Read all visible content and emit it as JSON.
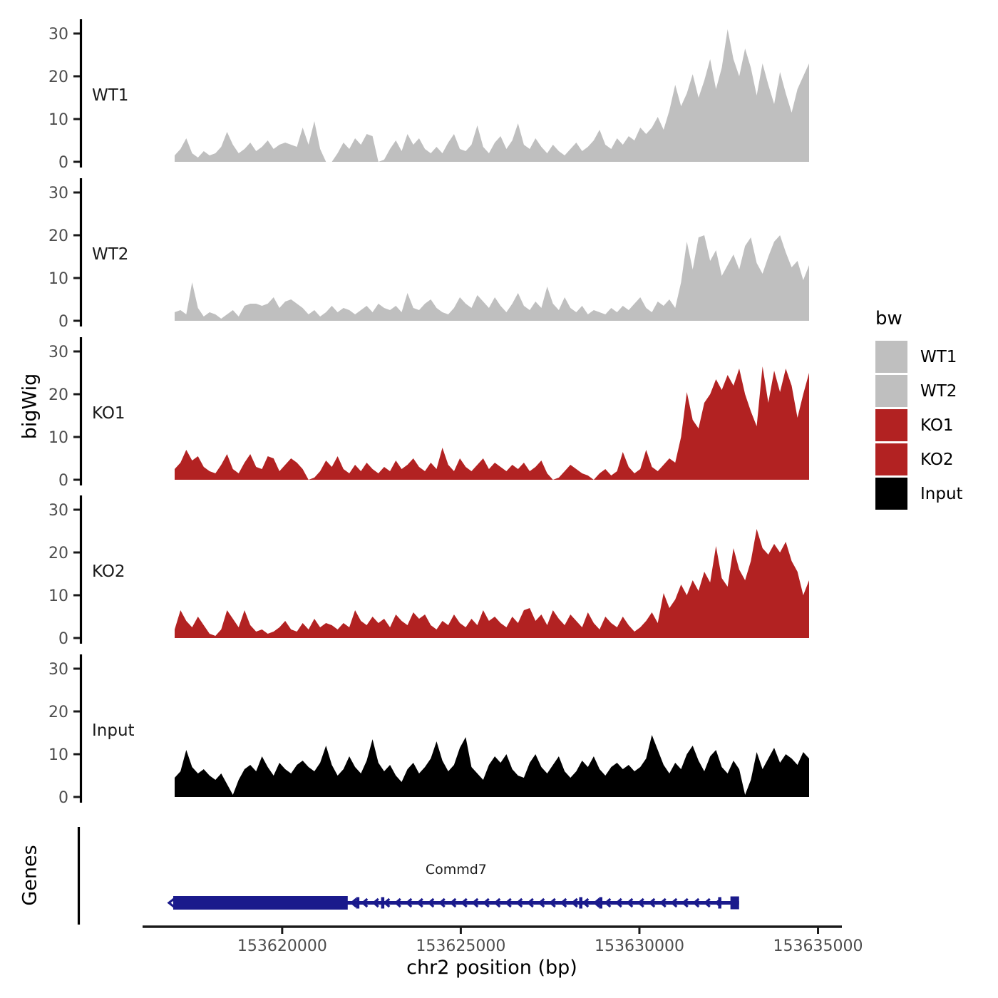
{
  "figure": {
    "ylabel_tracks": "bigWig",
    "ylabel_genes": "Genes",
    "xaxis_title": "chr2 position (bp)"
  },
  "legend": {
    "title": "bw",
    "items": [
      {
        "label": "WT1",
        "color": "#BFBFBF"
      },
      {
        "label": "WT2",
        "color": "#BFBFBF"
      },
      {
        "label": "KO1",
        "color": "#B22222"
      },
      {
        "label": "KO2",
        "color": "#B22222"
      },
      {
        "label": "Input",
        "color": "#000000"
      }
    ]
  },
  "colors": {
    "wt_fill": "#BFBFBF",
    "ko_fill": "#B22222",
    "input_fill": "#000000",
    "gene_fill": "#1A1A8C",
    "axis_text": "#4D4D4D",
    "axis_line": "#000000",
    "label_text": "#1A1A1A"
  },
  "chart_data": {
    "type": "area",
    "title": "",
    "xlabel": "chr2 position (bp)",
    "ylabel": "bigWig",
    "grid": false,
    "legend_position": "right",
    "x_domain": [
      153616990,
      153634750
    ],
    "x_ticks": [
      153620000,
      153625000,
      153630000,
      153635000
    ],
    "y_ticks": [
      0,
      10,
      20,
      30
    ],
    "ylim": [
      0,
      34
    ],
    "n_points": 110,
    "tracks": [
      {
        "name": "WT1",
        "color": "#BFBFBF",
        "values": [
          1.5,
          3,
          5.5,
          2,
          1,
          2.5,
          1.5,
          2,
          3.5,
          7,
          4,
          2,
          3,
          4.5,
          2.5,
          3.5,
          5,
          3,
          4,
          4.5,
          4,
          3.5,
          8,
          4,
          9.5,
          3,
          0,
          0,
          2,
          4.5,
          3,
          5.5,
          4,
          6.5,
          6,
          0,
          0.5,
          3,
          5,
          2.5,
          6.5,
          4,
          5.5,
          3,
          2,
          3.5,
          2,
          4.5,
          6.5,
          3,
          2.5,
          4,
          8.5,
          3.5,
          2,
          4.5,
          6,
          3,
          5,
          9,
          4,
          3,
          5.5,
          3.5,
          2,
          4,
          2.5,
          1.5,
          3,
          4.5,
          2.5,
          3.5,
          5,
          7.5,
          4,
          3,
          5.5,
          4,
          6,
          5,
          8,
          6.5,
          8,
          10.5,
          7.5,
          12,
          18,
          13,
          16,
          20.5,
          15,
          19,
          24,
          17,
          22,
          31,
          24,
          20,
          26.5,
          22,
          15.5,
          23,
          18,
          13.5,
          21,
          16,
          11.5,
          17,
          20,
          23
        ]
      },
      {
        "name": "WT2",
        "color": "#BFBFBF",
        "values": [
          2,
          2.5,
          1.5,
          9,
          3,
          1,
          2,
          1.5,
          0.5,
          1.5,
          2.5,
          1,
          3.5,
          4,
          4,
          3.5,
          4,
          5.5,
          3,
          4.5,
          5,
          4,
          3,
          1.5,
          2.5,
          1,
          2,
          3.5,
          2,
          3,
          2.5,
          1.5,
          2.5,
          3.5,
          2,
          4,
          3,
          2.5,
          3.5,
          2,
          6.5,
          3,
          2.5,
          4,
          5,
          3,
          2,
          1.5,
          3,
          5.5,
          4,
          3,
          6,
          4.5,
          3,
          5.5,
          3.5,
          2,
          4,
          6.5,
          3.5,
          2.5,
          4.5,
          3,
          8,
          4,
          2.5,
          5.5,
          3,
          2,
          3.5,
          1.5,
          2.5,
          2,
          1.5,
          3,
          2,
          3.5,
          2.5,
          4,
          5.5,
          3,
          2,
          4.5,
          3.5,
          5,
          3,
          9,
          18.5,
          12,
          19.5,
          20,
          14,
          16.5,
          10.5,
          13,
          15.5,
          12,
          17.5,
          19.5,
          13.5,
          11,
          15,
          18.5,
          20,
          16,
          12.5,
          14,
          9.5,
          13
        ]
      },
      {
        "name": "KO1",
        "color": "#B22222",
        "values": [
          2.5,
          4,
          7,
          4.5,
          5.5,
          3,
          2,
          1.5,
          3.5,
          6,
          2.5,
          1.5,
          4,
          6,
          3,
          2.5,
          5.5,
          5,
          2,
          3.5,
          5,
          4,
          2.5,
          0,
          0.5,
          2,
          4.5,
          3,
          5.5,
          2.5,
          1.5,
          3.5,
          2,
          4,
          2.5,
          1.5,
          3,
          2,
          4.5,
          2.5,
          3.5,
          5,
          3,
          2,
          4,
          2.5,
          7.5,
          3.5,
          2,
          5,
          3,
          2,
          3.5,
          5,
          2.5,
          4,
          3,
          2,
          3.5,
          2.5,
          4,
          2,
          3,
          4.5,
          1.5,
          0,
          0.5,
          2,
          3.5,
          2.5,
          1.5,
          1,
          0,
          1.5,
          2.5,
          1,
          2,
          6.5,
          3,
          1.5,
          2.5,
          7,
          3,
          2,
          3.5,
          5,
          4,
          10,
          20.5,
          14,
          12,
          18,
          20,
          23.5,
          21,
          24.5,
          22,
          26,
          20,
          16,
          12.5,
          26.5,
          18,
          25.5,
          20.5,
          26,
          22,
          14.5,
          20,
          25
        ]
      },
      {
        "name": "KO2",
        "color": "#B22222",
        "values": [
          2,
          6.5,
          4,
          2.5,
          5,
          3,
          1,
          0.5,
          2,
          6.5,
          4.5,
          2.5,
          6.5,
          3,
          1.5,
          2,
          1,
          1.5,
          2.5,
          4,
          2,
          1.5,
          3.5,
          2,
          4.5,
          2.5,
          3.5,
          3,
          2,
          3.5,
          2.5,
          6.5,
          4,
          3,
          5,
          3.5,
          4.5,
          2.5,
          5.5,
          4,
          3,
          6,
          4.5,
          5.5,
          3,
          2,
          4,
          3,
          5.5,
          3.5,
          2.5,
          4.5,
          3,
          6.5,
          4,
          5,
          3.5,
          2.5,
          5,
          3.5,
          6.5,
          7,
          4,
          5.5,
          3,
          6.5,
          4.5,
          3,
          5.5,
          4,
          2.5,
          6,
          3.5,
          2,
          5,
          3.5,
          2.5,
          5,
          3,
          1.5,
          2.5,
          4,
          6,
          3.5,
          10.5,
          7,
          9,
          12.5,
          10,
          13.5,
          11,
          15.5,
          13,
          21.5,
          14,
          12,
          21,
          16,
          13.5,
          18,
          25.5,
          21,
          19.5,
          22,
          20,
          22.5,
          18,
          15.5,
          10,
          13.5
        ]
      },
      {
        "name": "Input",
        "color": "#000000",
        "values": [
          4.5,
          6,
          11,
          7,
          5.5,
          6.5,
          5,
          4,
          5.5,
          3,
          0.5,
          4,
          6.5,
          7.5,
          6,
          9.5,
          7,
          5,
          8,
          6.5,
          5.5,
          7.5,
          8.5,
          7,
          6,
          8,
          12,
          7.5,
          5,
          6.5,
          9.5,
          7,
          5.5,
          8.5,
          13.5,
          8,
          6,
          7.5,
          5,
          3.5,
          6.5,
          8,
          5.5,
          7,
          9,
          13,
          8.5,
          6,
          7.5,
          11.5,
          14,
          7,
          5.5,
          4,
          7.5,
          9.5,
          8,
          10,
          6.5,
          5,
          4.5,
          8,
          10,
          7,
          5.5,
          7.5,
          9.5,
          6,
          4.5,
          6,
          8.5,
          7,
          9.5,
          6.5,
          5,
          7,
          8,
          6.5,
          7.5,
          6,
          7,
          9,
          14.5,
          11,
          7.5,
          5.5,
          8,
          6.5,
          10,
          12,
          8.5,
          6,
          9.5,
          11,
          7,
          5.5,
          8.5,
          6.5,
          0.5,
          4,
          10.5,
          6.5,
          9,
          11.5,
          8,
          10,
          9,
          7.5,
          10.5,
          9
        ]
      }
    ],
    "genes_track": {
      "label": "Genes",
      "gene": {
        "name": "Commd7",
        "strand": "-",
        "start": 153616950,
        "end": 153632790,
        "thick_exon": [
          153616950,
          153621835
        ],
        "exon_ticks": [
          153622115,
          153622813,
          153628358,
          153628917,
          153632248
        ],
        "end_box": [
          153632548,
          153632790
        ],
        "color": "#1A1A8C"
      }
    }
  }
}
